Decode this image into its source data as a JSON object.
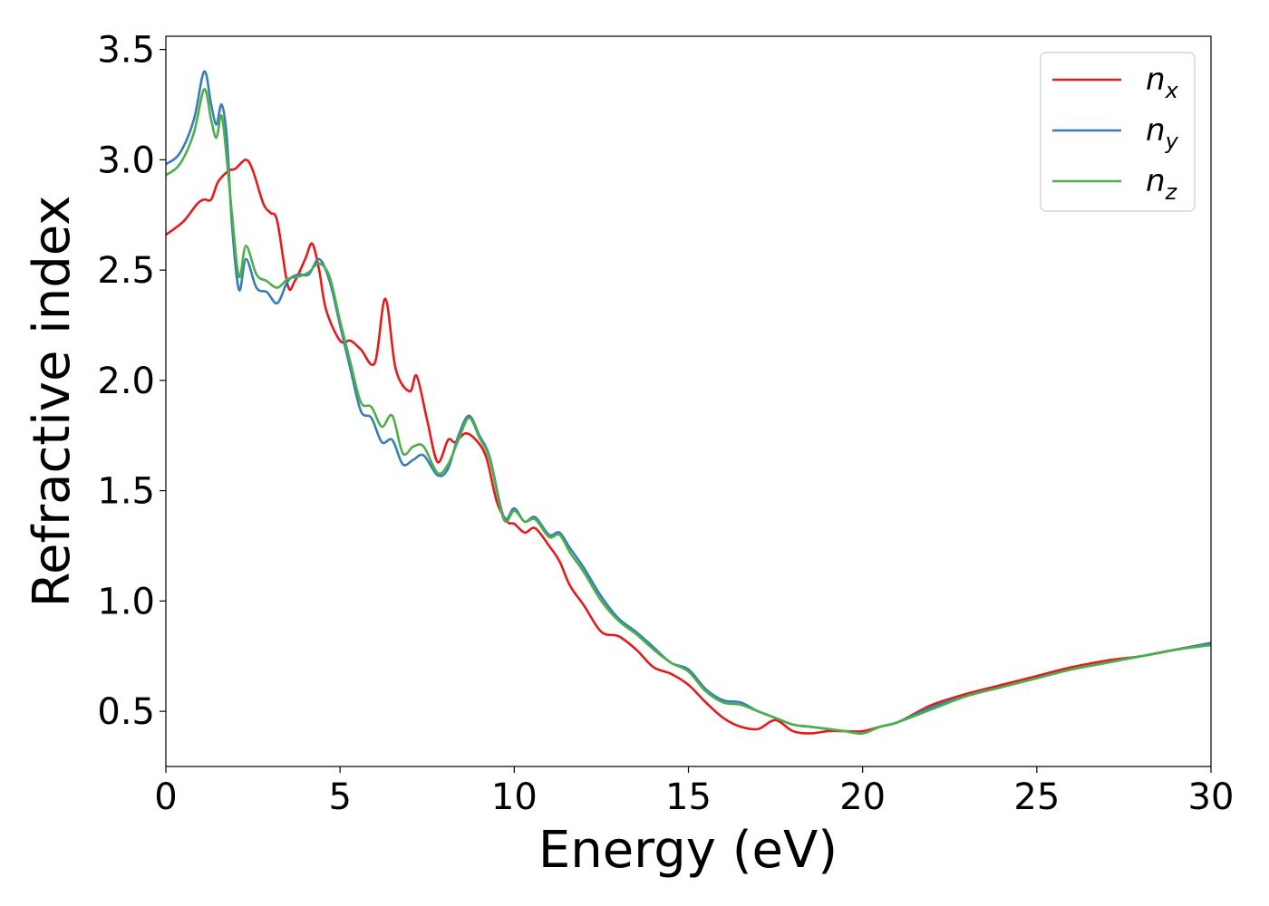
{
  "chart_data": {
    "type": "line",
    "title": "",
    "xlabel": "Energy (eV)",
    "ylabel": "Refractive index",
    "xlim": [
      0,
      30
    ],
    "ylim": [
      0.25,
      3.56
    ],
    "xticks": [
      0,
      5,
      10,
      15,
      20,
      25,
      30
    ],
    "xtick_labels": [
      "0",
      "5",
      "10",
      "15",
      "20",
      "25",
      "30"
    ],
    "yticks": [
      0.5,
      1.0,
      1.5,
      2.0,
      2.5,
      3.0,
      3.5
    ],
    "ytick_labels": [
      "0.5",
      "1.0",
      "1.5",
      "2.0",
      "2.5",
      "3.0",
      "3.5"
    ],
    "grid": false,
    "legend_position": "top-right",
    "series": [
      {
        "name": "n_x",
        "label_base": "n",
        "label_sub": "x",
        "color": "#e41a1c",
        "x": [
          0,
          0.5,
          0.9,
          1.1,
          1.3,
          1.5,
          1.8,
          2.0,
          2.3,
          2.5,
          2.8,
          3.0,
          3.2,
          3.5,
          3.7,
          4.0,
          4.2,
          4.4,
          4.6,
          5.0,
          5.3,
          5.6,
          6.0,
          6.3,
          6.6,
          7.0,
          7.2,
          7.5,
          7.8,
          8.1,
          8.3,
          8.6,
          8.9,
          9.2,
          9.5,
          9.8,
          10.0,
          10.3,
          10.6,
          11.0,
          11.3,
          11.6,
          12.0,
          12.5,
          13.0,
          13.5,
          14.0,
          14.5,
          15.0,
          15.5,
          16.0,
          16.5,
          17.0,
          17.5,
          18.0,
          18.5,
          19.0,
          19.5,
          20.0,
          20.5,
          21.0,
          21.5,
          22.0,
          23.0,
          24.0,
          25.0,
          26.0,
          27.0,
          28.0,
          29.0,
          30.0
        ],
        "y": [
          2.66,
          2.72,
          2.8,
          2.82,
          2.82,
          2.9,
          2.95,
          2.96,
          3.0,
          2.95,
          2.8,
          2.76,
          2.72,
          2.43,
          2.45,
          2.55,
          2.62,
          2.5,
          2.32,
          2.18,
          2.18,
          2.14,
          2.08,
          2.37,
          2.05,
          1.95,
          2.02,
          1.82,
          1.63,
          1.73,
          1.72,
          1.76,
          1.73,
          1.65,
          1.45,
          1.36,
          1.35,
          1.31,
          1.33,
          1.25,
          1.18,
          1.07,
          0.98,
          0.86,
          0.84,
          0.78,
          0.7,
          0.67,
          0.62,
          0.54,
          0.47,
          0.43,
          0.42,
          0.46,
          0.41,
          0.4,
          0.41,
          0.41,
          0.41,
          0.43,
          0.45,
          0.49,
          0.53,
          0.58,
          0.62,
          0.66,
          0.7,
          0.73,
          0.75,
          0.78,
          0.81
        ]
      },
      {
        "name": "n_y",
        "label_base": "n",
        "label_sub": "y",
        "color": "#377eb8",
        "x": [
          0,
          0.4,
          0.8,
          1.1,
          1.3,
          1.45,
          1.6,
          1.75,
          1.9,
          2.1,
          2.3,
          2.6,
          2.9,
          3.2,
          3.5,
          3.8,
          4.1,
          4.4,
          4.7,
          5.0,
          5.3,
          5.6,
          5.9,
          6.2,
          6.5,
          6.8,
          7.1,
          7.4,
          7.8,
          8.1,
          8.4,
          8.7,
          9.0,
          9.3,
          9.7,
          10.0,
          10.3,
          10.6,
          11.0,
          11.3,
          11.6,
          12.0,
          12.5,
          13.0,
          13.5,
          14.0,
          14.5,
          15.0,
          15.5,
          16.0,
          16.5,
          17.0,
          17.5,
          18.0,
          18.5,
          19.0,
          19.5,
          20.0,
          20.5,
          21.0,
          22.0,
          23.0,
          24.0,
          25.0,
          26.0,
          27.0,
          28.0,
          29.0,
          30.0
        ],
        "y": [
          2.98,
          3.03,
          3.18,
          3.4,
          3.25,
          3.16,
          3.25,
          3.1,
          2.7,
          2.41,
          2.55,
          2.42,
          2.4,
          2.35,
          2.45,
          2.48,
          2.48,
          2.55,
          2.45,
          2.25,
          2.05,
          1.86,
          1.83,
          1.72,
          1.73,
          1.62,
          1.64,
          1.66,
          1.57,
          1.6,
          1.75,
          1.84,
          1.75,
          1.65,
          1.38,
          1.42,
          1.36,
          1.38,
          1.3,
          1.31,
          1.24,
          1.15,
          1.02,
          0.92,
          0.86,
          0.79,
          0.72,
          0.69,
          0.6,
          0.55,
          0.54,
          0.5,
          0.47,
          0.44,
          0.43,
          0.42,
          0.41,
          0.4,
          0.43,
          0.45,
          0.52,
          0.57,
          0.61,
          0.65,
          0.69,
          0.72,
          0.75,
          0.78,
          0.81
        ]
      },
      {
        "name": "n_z",
        "label_base": "n",
        "label_sub": "z",
        "color": "#4daf4a",
        "x": [
          0,
          0.4,
          0.8,
          1.1,
          1.3,
          1.45,
          1.6,
          1.75,
          1.9,
          2.1,
          2.3,
          2.6,
          2.9,
          3.2,
          3.5,
          3.8,
          4.1,
          4.4,
          4.7,
          5.0,
          5.3,
          5.6,
          5.9,
          6.2,
          6.5,
          6.8,
          7.1,
          7.4,
          7.8,
          8.1,
          8.4,
          8.7,
          9.0,
          9.3,
          9.7,
          10.0,
          10.3,
          10.6,
          11.0,
          11.3,
          11.6,
          12.0,
          12.5,
          13.0,
          13.5,
          14.0,
          14.5,
          15.0,
          15.5,
          16.0,
          16.5,
          17.0,
          17.5,
          18.0,
          18.5,
          19.0,
          19.5,
          20.0,
          20.5,
          21.0,
          22.0,
          23.0,
          24.0,
          25.0,
          26.0,
          27.0,
          28.0,
          29.0,
          30.0
        ],
        "y": [
          2.93,
          2.98,
          3.12,
          3.32,
          3.18,
          3.1,
          3.2,
          3.0,
          2.75,
          2.47,
          2.61,
          2.48,
          2.45,
          2.42,
          2.46,
          2.47,
          2.49,
          2.53,
          2.47,
          2.27,
          2.08,
          1.9,
          1.88,
          1.79,
          1.84,
          1.67,
          1.7,
          1.7,
          1.58,
          1.62,
          1.73,
          1.83,
          1.74,
          1.64,
          1.37,
          1.41,
          1.36,
          1.37,
          1.29,
          1.3,
          1.22,
          1.13,
          1.0,
          0.91,
          0.85,
          0.78,
          0.72,
          0.68,
          0.59,
          0.54,
          0.53,
          0.5,
          0.47,
          0.44,
          0.43,
          0.42,
          0.41,
          0.4,
          0.43,
          0.45,
          0.51,
          0.57,
          0.61,
          0.65,
          0.69,
          0.72,
          0.75,
          0.78,
          0.8
        ]
      }
    ]
  }
}
